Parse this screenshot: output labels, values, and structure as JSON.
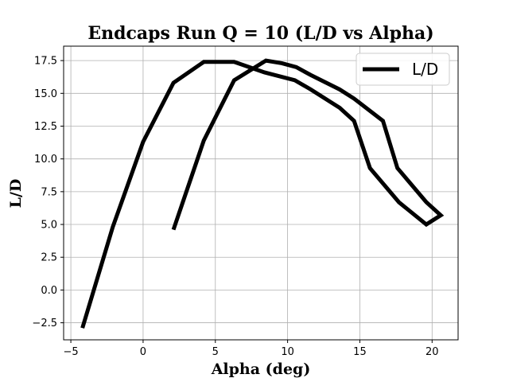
{
  "chart_data": {
    "type": "line",
    "title": "Endcaps Run Q = 10 (L/D vs Alpha)",
    "xlabel": "Alpha (deg)",
    "ylabel": "L/D",
    "xlim": [
      -5.5,
      21.8
    ],
    "ylim": [
      -3.8,
      18.6
    ],
    "xticks": [
      -5,
      0,
      5,
      10,
      15,
      20
    ],
    "xtick_labels": [
      "−5",
      "0",
      "5",
      "10",
      "15",
      "20"
    ],
    "yticks": [
      -2.5,
      0.0,
      2.5,
      5.0,
      7.5,
      10.0,
      12.5,
      15.0,
      17.5
    ],
    "ytick_labels": [
      "−2.5",
      "0.0",
      "2.5",
      "5.0",
      "7.5",
      "10.0",
      "12.5",
      "15.0",
      "17.5"
    ],
    "grid": true,
    "legend_position": "top-right",
    "series": [
      {
        "name": "L/D",
        "color": "#000000",
        "points": [
          [
            -4.2,
            -2.9
          ],
          [
            -2.1,
            4.8
          ],
          [
            0.0,
            11.3
          ],
          [
            2.1,
            15.8
          ],
          [
            4.2,
            17.4
          ],
          [
            6.3,
            17.4
          ],
          [
            8.4,
            16.6
          ],
          [
            10.5,
            16.0
          ],
          [
            11.6,
            15.3
          ],
          [
            13.6,
            13.9
          ],
          [
            14.6,
            12.9
          ],
          [
            15.7,
            9.3
          ],
          [
            16.7,
            8.0
          ],
          [
            17.7,
            6.7
          ],
          [
            19.6,
            5.0
          ],
          [
            20.6,
            5.7
          ],
          [
            19.6,
            6.7
          ],
          [
            17.6,
            9.3
          ],
          [
            16.6,
            12.9
          ],
          [
            14.6,
            14.6
          ],
          [
            13.6,
            15.3
          ],
          [
            11.6,
            16.4
          ],
          [
            10.6,
            17.0
          ],
          [
            9.6,
            17.3
          ],
          [
            8.5,
            17.5
          ],
          [
            6.3,
            16.0
          ],
          [
            4.2,
            11.4
          ],
          [
            2.1,
            4.6
          ]
        ]
      }
    ]
  }
}
